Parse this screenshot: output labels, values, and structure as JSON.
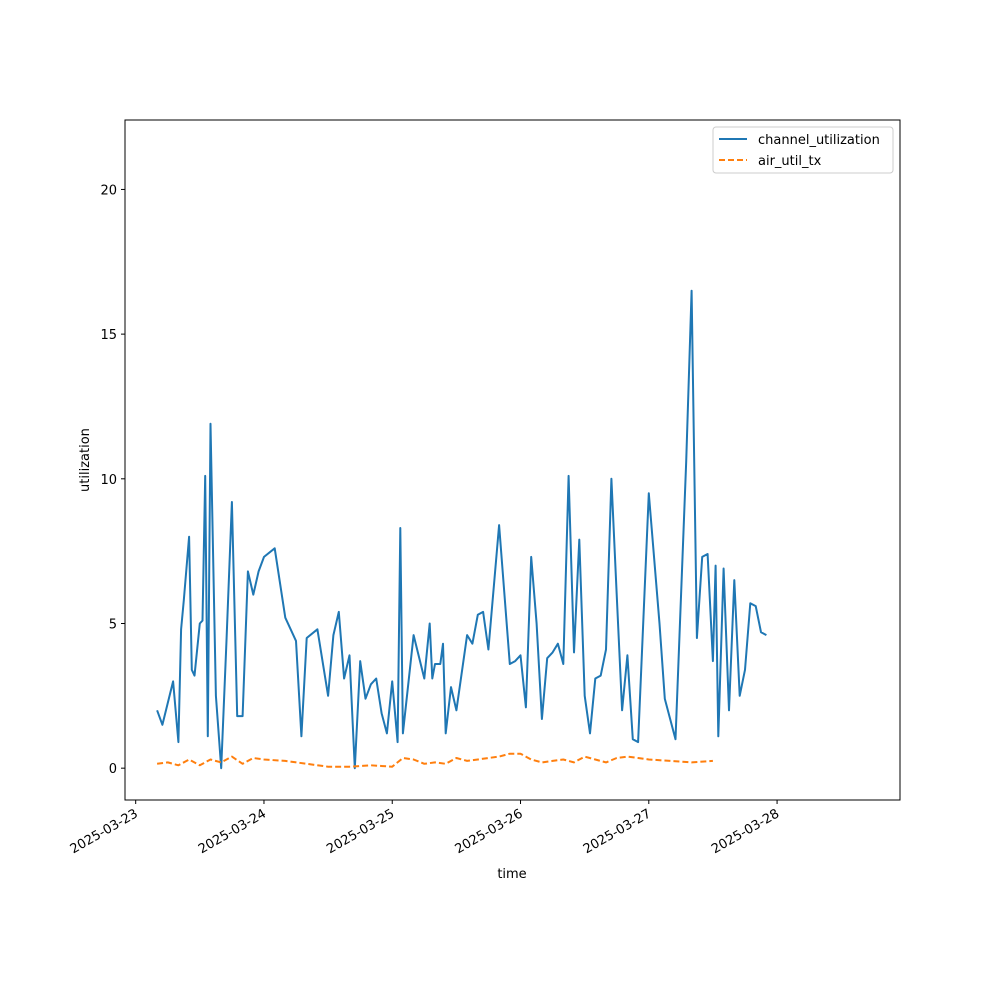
{
  "chart_data": {
    "type": "line",
    "title": "",
    "xlabel": "time",
    "ylabel": "utilization",
    "xlim": [
      "2025-03-22 22:00",
      "2025-03-28 23:00"
    ],
    "ylim": [
      -1.1,
      22.4
    ],
    "x_ticks": [
      "2025-03-23",
      "2025-03-24",
      "2025-03-25",
      "2025-03-26",
      "2025-03-27",
      "2025-03-28"
    ],
    "y_ticks": [
      0,
      5,
      10,
      15,
      20
    ],
    "grid": false,
    "legend_position": "top-right",
    "series": [
      {
        "name": "channel_utilization",
        "color": "#1f77b4",
        "dash": "solid",
        "points": [
          [
            "2025-03-23 04:00",
            2.0
          ],
          [
            "2025-03-23 05:00",
            1.5
          ],
          [
            "2025-03-23 07:00",
            3.0
          ],
          [
            "2025-03-23 08:00",
            0.9
          ],
          [
            "2025-03-23 08:30",
            4.8
          ],
          [
            "2025-03-23 09:00",
            5.8
          ],
          [
            "2025-03-23 10:00",
            8.0
          ],
          [
            "2025-03-23 10:30",
            3.4
          ],
          [
            "2025-03-23 11:00",
            3.2
          ],
          [
            "2025-03-23 12:00",
            5.0
          ],
          [
            "2025-03-23 12:30",
            5.1
          ],
          [
            "2025-03-23 13:00",
            10.1
          ],
          [
            "2025-03-23 13:30",
            1.1
          ],
          [
            "2025-03-23 14:00",
            11.9
          ],
          [
            "2025-03-23 15:00",
            2.5
          ],
          [
            "2025-03-23 16:00",
            0.0
          ],
          [
            "2025-03-23 17:00",
            4.5
          ],
          [
            "2025-03-23 18:00",
            9.2
          ],
          [
            "2025-03-23 19:00",
            1.8
          ],
          [
            "2025-03-23 20:00",
            1.8
          ],
          [
            "2025-03-23 21:00",
            6.8
          ],
          [
            "2025-03-23 22:00",
            6.0
          ],
          [
            "2025-03-23 23:00",
            6.8
          ],
          [
            "2025-03-24 00:00",
            7.3
          ],
          [
            "2025-03-24 02:00",
            7.6
          ],
          [
            "2025-03-24 04:00",
            5.2
          ],
          [
            "2025-03-24 06:00",
            4.4
          ],
          [
            "2025-03-24 07:00",
            1.1
          ],
          [
            "2025-03-24 08:00",
            4.5
          ],
          [
            "2025-03-24 10:00",
            4.8
          ],
          [
            "2025-03-24 12:00",
            2.5
          ],
          [
            "2025-03-24 13:00",
            4.6
          ],
          [
            "2025-03-24 14:00",
            5.4
          ],
          [
            "2025-03-24 15:00",
            3.1
          ],
          [
            "2025-03-24 16:00",
            3.9
          ],
          [
            "2025-03-24 17:00",
            0.0
          ],
          [
            "2025-03-24 18:00",
            3.7
          ],
          [
            "2025-03-24 19:00",
            2.4
          ],
          [
            "2025-03-24 20:00",
            2.9
          ],
          [
            "2025-03-24 21:00",
            3.1
          ],
          [
            "2025-03-24 22:00",
            1.9
          ],
          [
            "2025-03-24 23:00",
            1.2
          ],
          [
            "2025-03-25 00:00",
            3.0
          ],
          [
            "2025-03-25 01:00",
            0.9
          ],
          [
            "2025-03-25 01:30",
            8.3
          ],
          [
            "2025-03-25 02:00",
            1.2
          ],
          [
            "2025-03-25 04:00",
            4.6
          ],
          [
            "2025-03-25 06:00",
            3.1
          ],
          [
            "2025-03-25 07:00",
            5.0
          ],
          [
            "2025-03-25 07:30",
            3.1
          ],
          [
            "2025-03-25 08:00",
            3.6
          ],
          [
            "2025-03-25 09:00",
            3.6
          ],
          [
            "2025-03-25 09:30",
            4.3
          ],
          [
            "2025-03-25 10:00",
            1.2
          ],
          [
            "2025-03-25 11:00",
            2.8
          ],
          [
            "2025-03-25 12:00",
            2.0
          ],
          [
            "2025-03-25 14:00",
            4.6
          ],
          [
            "2025-03-25 15:00",
            4.3
          ],
          [
            "2025-03-25 16:00",
            5.3
          ],
          [
            "2025-03-25 17:00",
            5.4
          ],
          [
            "2025-03-25 18:00",
            4.1
          ],
          [
            "2025-03-25 20:00",
            8.4
          ],
          [
            "2025-03-25 22:00",
            3.6
          ],
          [
            "2025-03-25 23:00",
            3.7
          ],
          [
            "2025-03-26 00:00",
            3.9
          ],
          [
            "2025-03-26 01:00",
            2.1
          ],
          [
            "2025-03-26 02:00",
            7.3
          ],
          [
            "2025-03-26 03:00",
            5.0
          ],
          [
            "2025-03-26 04:00",
            1.7
          ],
          [
            "2025-03-26 05:00",
            3.8
          ],
          [
            "2025-03-26 06:00",
            4.0
          ],
          [
            "2025-03-26 07:00",
            4.3
          ],
          [
            "2025-03-26 08:00",
            3.6
          ],
          [
            "2025-03-26 09:00",
            10.1
          ],
          [
            "2025-03-26 10:00",
            4.0
          ],
          [
            "2025-03-26 11:00",
            7.9
          ],
          [
            "2025-03-26 12:00",
            2.5
          ],
          [
            "2025-03-26 13:00",
            1.2
          ],
          [
            "2025-03-26 14:00",
            3.1
          ],
          [
            "2025-03-26 15:00",
            3.2
          ],
          [
            "2025-03-26 16:00",
            4.1
          ],
          [
            "2025-03-26 17:00",
            10.0
          ],
          [
            "2025-03-26 18:00",
            6.0
          ],
          [
            "2025-03-26 19:00",
            2.0
          ],
          [
            "2025-03-26 20:00",
            3.9
          ],
          [
            "2025-03-26 21:00",
            1.0
          ],
          [
            "2025-03-26 22:00",
            0.9
          ],
          [
            "2025-03-27 00:00",
            9.5
          ],
          [
            "2025-03-27 02:00",
            5.0
          ],
          [
            "2025-03-27 03:00",
            2.4
          ],
          [
            "2025-03-27 05:00",
            1.0
          ],
          [
            "2025-03-27 07:00",
            10.6
          ],
          [
            "2025-03-27 08:00",
            16.5
          ],
          [
            "2025-03-27 09:00",
            4.5
          ],
          [
            "2025-03-27 10:00",
            7.3
          ],
          [
            "2025-03-27 11:00",
            7.4
          ],
          [
            "2025-03-27 12:00",
            3.7
          ],
          [
            "2025-03-27 12:30",
            7.0
          ],
          [
            "2025-03-27 13:00",
            1.1
          ],
          [
            "2025-03-27 14:00",
            6.9
          ],
          [
            "2025-03-27 15:00",
            2.0
          ],
          [
            "2025-03-27 16:00",
            6.5
          ],
          [
            "2025-03-27 17:00",
            2.5
          ],
          [
            "2025-03-27 18:00",
            3.4
          ],
          [
            "2025-03-27 19:00",
            5.7
          ],
          [
            "2025-03-27 20:00",
            5.6
          ],
          [
            "2025-03-27 21:00",
            4.7
          ],
          [
            "2025-03-27 22:00",
            4.6
          ]
        ]
      },
      {
        "name": "air_util_tx",
        "color": "#ff7f0e",
        "dash": "dashed",
        "points": [
          [
            "2025-03-23 04:00",
            0.15
          ],
          [
            "2025-03-23 06:00",
            0.2
          ],
          [
            "2025-03-23 08:00",
            0.1
          ],
          [
            "2025-03-23 10:00",
            0.3
          ],
          [
            "2025-03-23 12:00",
            0.1
          ],
          [
            "2025-03-23 14:00",
            0.3
          ],
          [
            "2025-03-23 16:00",
            0.2
          ],
          [
            "2025-03-23 18:00",
            0.4
          ],
          [
            "2025-03-23 20:00",
            0.15
          ],
          [
            "2025-03-23 22:00",
            0.35
          ],
          [
            "2025-03-24 00:00",
            0.3
          ],
          [
            "2025-03-24 04:00",
            0.25
          ],
          [
            "2025-03-24 08:00",
            0.15
          ],
          [
            "2025-03-24 12:00",
            0.05
          ],
          [
            "2025-03-24 16:00",
            0.05
          ],
          [
            "2025-03-24 20:00",
            0.1
          ],
          [
            "2025-03-25 00:00",
            0.05
          ],
          [
            "2025-03-25 02:00",
            0.35
          ],
          [
            "2025-03-25 04:00",
            0.3
          ],
          [
            "2025-03-25 06:00",
            0.15
          ],
          [
            "2025-03-25 08:00",
            0.2
          ],
          [
            "2025-03-25 10:00",
            0.15
          ],
          [
            "2025-03-25 12:00",
            0.35
          ],
          [
            "2025-03-25 14:00",
            0.25
          ],
          [
            "2025-03-25 16:00",
            0.3
          ],
          [
            "2025-03-25 18:00",
            0.35
          ],
          [
            "2025-03-25 20:00",
            0.4
          ],
          [
            "2025-03-25 22:00",
            0.5
          ],
          [
            "2025-03-26 00:00",
            0.5
          ],
          [
            "2025-03-26 02:00",
            0.3
          ],
          [
            "2025-03-26 04:00",
            0.2
          ],
          [
            "2025-03-26 06:00",
            0.25
          ],
          [
            "2025-03-26 08:00",
            0.3
          ],
          [
            "2025-03-26 10:00",
            0.2
          ],
          [
            "2025-03-26 12:00",
            0.4
          ],
          [
            "2025-03-26 14:00",
            0.3
          ],
          [
            "2025-03-26 16:00",
            0.2
          ],
          [
            "2025-03-26 18:00",
            0.35
          ],
          [
            "2025-03-26 20:00",
            0.4
          ],
          [
            "2025-03-26 22:00",
            0.35
          ],
          [
            "2025-03-27 00:00",
            0.3
          ],
          [
            "2025-03-27 04:00",
            0.25
          ],
          [
            "2025-03-27 08:00",
            0.2
          ],
          [
            "2025-03-27 12:00",
            0.25
          ]
        ]
      }
    ]
  }
}
